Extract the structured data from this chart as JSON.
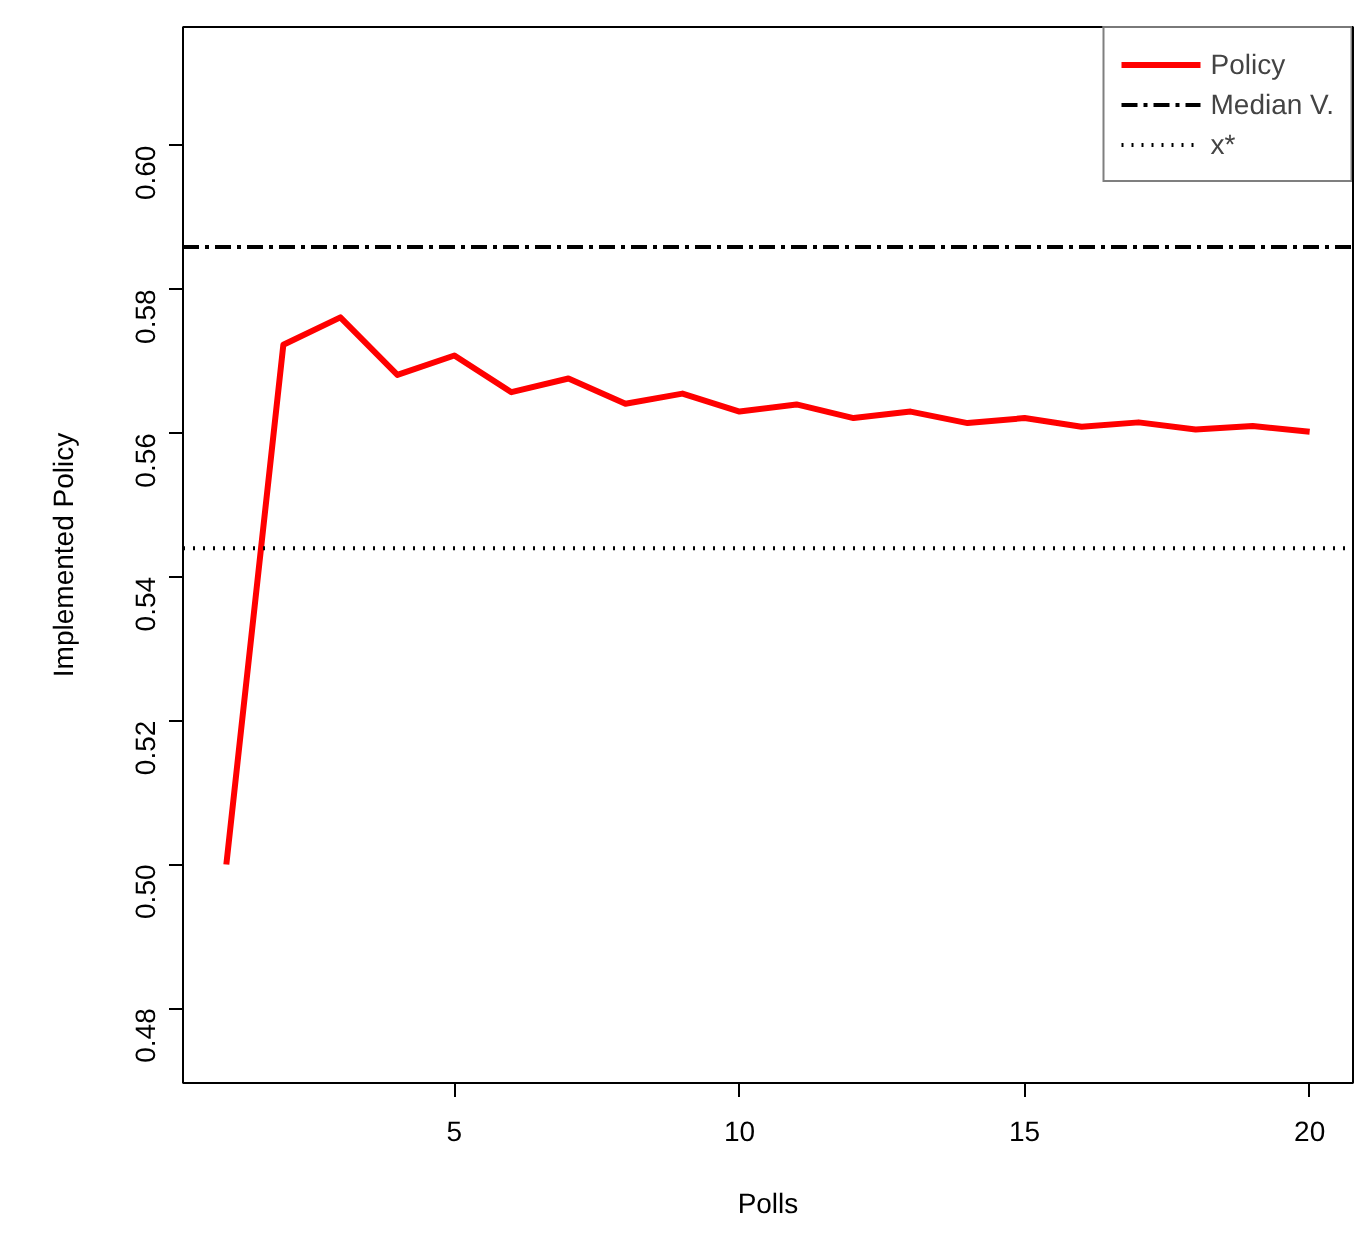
{
  "chart_data": {
    "type": "line",
    "xlabel": "Polls",
    "ylabel": "Implemented Policy",
    "x": [
      1,
      2,
      3,
      4,
      5,
      6,
      7,
      8,
      9,
      10,
      11,
      12,
      13,
      14,
      15,
      16,
      17,
      18,
      19,
      20
    ],
    "series": [
      {
        "name": "Policy",
        "color": "#ff0000",
        "values": [
          0.5,
          0.5723,
          0.5761,
          0.5681,
          0.5708,
          0.5657,
          0.5676,
          0.5641,
          0.5655,
          0.563,
          0.564,
          0.5621,
          0.563,
          0.5614,
          0.5621,
          0.5609,
          0.5615,
          0.5605,
          0.561,
          0.5602
        ]
      }
    ],
    "ref_lines": [
      {
        "axis": "y",
        "value": 0.5859,
        "label": "Median V.",
        "color": "#000000",
        "line_style": "dashdot"
      },
      {
        "axis": "y",
        "value": 0.544,
        "label": "x*",
        "color": "#000000",
        "line_style": "dotted"
      }
    ],
    "xlim": [
      0.24,
      20.76
    ],
    "ylim": [
      0.4696,
      0.6165
    ],
    "xticks": [
      5,
      10,
      15,
      20
    ],
    "yticks": [
      0.48,
      {
        "value": 0.5,
        "label": "0.50"
      },
      0.52,
      0.54,
      0.56,
      0.58,
      {
        "value": 0.6,
        "label": "0.60"
      }
    ],
    "grid": false,
    "legend": "top right",
    "line_style": "solid",
    "marker": "none"
  }
}
